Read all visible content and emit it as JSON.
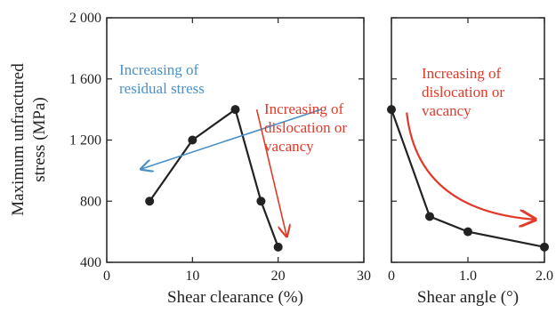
{
  "chart_data": {
    "type": "line",
    "ylabel_lines": [
      "Maximum unfractured",
      "stress (MPa)"
    ],
    "ylim": [
      400,
      2000
    ],
    "yticks": [
      400,
      800,
      1200,
      1600,
      2000
    ],
    "ytick_labels": [
      "400",
      "800",
      "1 200",
      "1 600",
      "2 000"
    ],
    "panels": [
      {
        "id": "clearance",
        "xlabel": "Shear clearance (%)",
        "xlim": [
          0,
          30
        ],
        "xticks": [
          0,
          10,
          20,
          30
        ],
        "xtick_labels": [
          "0",
          "10",
          "20",
          "30"
        ],
        "series": [
          {
            "x": [
              5,
              10,
              15,
              18,
              20
            ],
            "y": [
              800,
              1200,
              1400,
              800,
              500
            ]
          }
        ],
        "annotations": [
          {
            "lines": [
              "Increasing of",
              "residual stress"
            ],
            "color": "#4a90c8",
            "arrow_from": [
              25,
              1400
            ],
            "arrow_to": [
              4,
              1010
            ]
          },
          {
            "lines": [
              "Increasing of",
              "dislocation or",
              "vacancy"
            ],
            "color": "#e03a2a",
            "arrow_from": [
              17.5,
              1400
            ],
            "arrow_to": [
              21,
              570
            ]
          }
        ]
      },
      {
        "id": "angle",
        "xlabel": "Shear angle (°)",
        "xlim": [
          0,
          2
        ],
        "xticks": [
          0,
          1,
          2
        ],
        "xtick_labels": [
          "0",
          "1.0",
          "2.0"
        ],
        "series": [
          {
            "x": [
              0,
              0.5,
              1.0,
              2.0
            ],
            "y": [
              1400,
              700,
              600,
              500
            ]
          }
        ],
        "annotations": [
          {
            "lines": [
              "Increasing of",
              "dislocation or",
              "vacancy"
            ],
            "color": "#e03a2a",
            "curve_from": [
              0.2,
              1380
            ],
            "curve_to": [
              1.88,
              680
            ]
          }
        ]
      }
    ]
  }
}
